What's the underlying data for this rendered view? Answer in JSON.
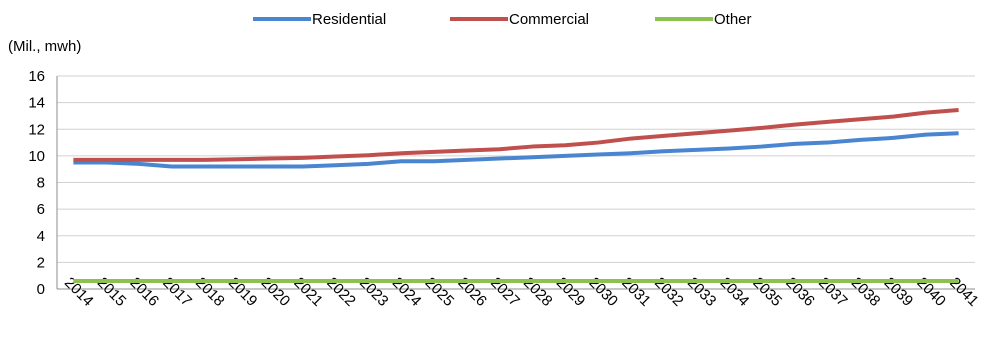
{
  "chart_data": {
    "type": "line",
    "unit_label": "(Mil., mwh)",
    "title": "",
    "xlabel": "",
    "ylabel": "",
    "ylim": [
      0,
      16
    ],
    "y_ticks": [
      0,
      2,
      4,
      6,
      8,
      10,
      12,
      14,
      16
    ],
    "grid": true,
    "legend_position": "top",
    "x": [
      "2014",
      "2015",
      "2016",
      "2017",
      "2018",
      "2019",
      "2020",
      "2021",
      "2022",
      "2023",
      "2024",
      "2025",
      "2026",
      "2027",
      "2028",
      "2029",
      "2030",
      "2031",
      "2032",
      "2033",
      "2034",
      "2035",
      "2036",
      "2037",
      "2038",
      "2039",
      "2040",
      "2041"
    ],
    "series": [
      {
        "name": "Residential",
        "color": "#4a86d0",
        "values": [
          9.5,
          9.5,
          9.4,
          9.2,
          9.2,
          9.2,
          9.2,
          9.2,
          9.3,
          9.4,
          9.6,
          9.6,
          9.7,
          9.8,
          9.9,
          10.0,
          10.1,
          10.2,
          10.35,
          10.45,
          10.55,
          10.7,
          10.9,
          11.0,
          11.2,
          11.35,
          11.6,
          11.7
        ]
      },
      {
        "name": "Commercial",
        "color": "#c0504d",
        "values": [
          9.7,
          9.7,
          9.7,
          9.7,
          9.7,
          9.75,
          9.8,
          9.85,
          9.95,
          10.05,
          10.2,
          10.3,
          10.4,
          10.5,
          10.7,
          10.8,
          11.0,
          11.3,
          11.5,
          11.7,
          11.9,
          12.1,
          12.35,
          12.55,
          12.75,
          12.95,
          13.25,
          13.45
        ]
      },
      {
        "name": "Other",
        "color": "#8cc152",
        "values": [
          0.6,
          0.6,
          0.6,
          0.6,
          0.6,
          0.6,
          0.6,
          0.6,
          0.6,
          0.6,
          0.6,
          0.6,
          0.6,
          0.6,
          0.6,
          0.6,
          0.6,
          0.6,
          0.6,
          0.6,
          0.6,
          0.6,
          0.6,
          0.6,
          0.6,
          0.6,
          0.6,
          0.6
        ]
      }
    ]
  }
}
